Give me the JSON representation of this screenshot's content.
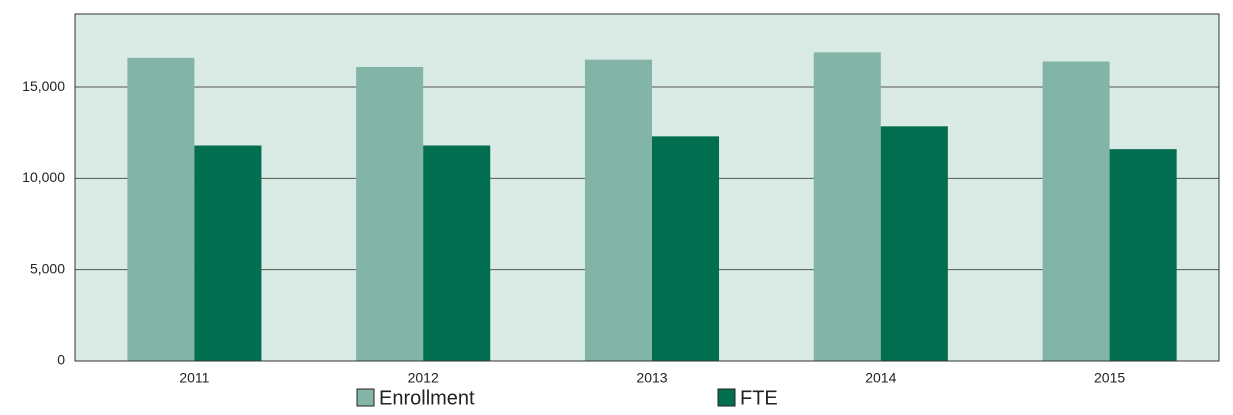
{
  "chart_data": {
    "type": "bar",
    "categories": [
      "2011",
      "2012",
      "2013",
      "2014",
      "2015"
    ],
    "series": [
      {
        "name": "Enrollment",
        "color": "#82b5a8",
        "values": [
          16600,
          16100,
          16500,
          16900,
          16400
        ]
      },
      {
        "name": "FTE",
        "color": "#006e4f",
        "values": [
          11800,
          11800,
          12300,
          12850,
          11600
        ]
      }
    ],
    "ylim": [
      0,
      19000
    ],
    "yticks": [
      0,
      {
        "value": 5000,
        "label": "5,000"
      },
      {
        "value": 10000,
        "label": "10,000"
      },
      {
        "value": 15000,
        "label": "15,000"
      }
    ],
    "grid": true,
    "background": "#d9ebe4",
    "legend": "bottom"
  }
}
